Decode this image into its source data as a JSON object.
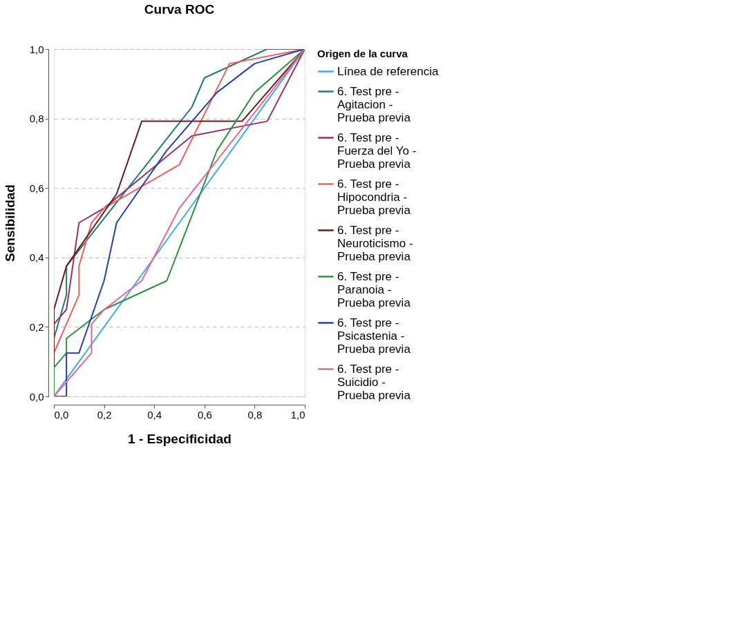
{
  "chart_data": {
    "type": "line",
    "title": "Curva ROC",
    "xlabel": "1 - Especificidad",
    "ylabel": "Sensibilidad",
    "legend_title": "Origen de la curva",
    "xlim": [
      0,
      1
    ],
    "ylim": [
      0,
      1
    ],
    "xticks": [
      {
        "value": 0,
        "label": "0,0"
      },
      {
        "value": 0.2,
        "label": "0,2"
      },
      {
        "value": 0.4,
        "label": "0,4"
      },
      {
        "value": 0.6,
        "label": "0,6"
      },
      {
        "value": 0.8,
        "label": "0,8"
      },
      {
        "value": 1,
        "label": "1,0"
      }
    ],
    "yticks": [
      {
        "value": 0,
        "label": "0,0"
      },
      {
        "value": 0.2,
        "label": "0,2"
      },
      {
        "value": 0.4,
        "label": "0,4"
      },
      {
        "value": 0.6,
        "label": "0,6"
      },
      {
        "value": 0.8,
        "label": "0,8"
      },
      {
        "value": 1,
        "label": "1,0"
      }
    ],
    "grid": "y",
    "legend": "right",
    "marker": "none",
    "line_style": "solid",
    "series": [
      {
        "name": "Línea de referencia",
        "color": "#3fa9f5",
        "x": [
          0,
          1
        ],
        "values": [
          0,
          1
        ]
      },
      {
        "name": "6. Test pre - Agitacion - Prueba previa",
        "color": "#1f7a73",
        "x": [
          0,
          0,
          0.05,
          0.05,
          0.55,
          0.6,
          0.85,
          1
        ],
        "values": [
          0,
          0.167,
          0.292,
          0.375,
          0.833,
          0.917,
          1,
          1
        ]
      },
      {
        "name": "6. Test pre - Fuerza del Yo - Prueba previa",
        "color": "#9c2e6b",
        "x": [
          0,
          0,
          0.05,
          0.1,
          0.2,
          0.55,
          0.85,
          1
        ],
        "values": [
          0,
          0.208,
          0.25,
          0.5,
          0.542,
          0.75,
          0.792,
          1
        ]
      },
      {
        "name": "6. Test pre - Hipocondria - Prueba previa",
        "color": "#ff5a5a",
        "x": [
          0,
          0,
          0.1,
          0.1,
          0.15,
          0.2,
          0.5,
          0.7,
          1
        ],
        "values": [
          0,
          0.125,
          0.292,
          0.375,
          0.5,
          0.542,
          0.667,
          0.958,
          1
        ]
      },
      {
        "name": "6. Test pre - Neuroticismo - Prueba previa",
        "color": "#6b1a1a",
        "x": [
          0,
          0,
          0.05,
          0.25,
          0.35,
          0.75,
          1
        ],
        "values": [
          0,
          0.25,
          0.375,
          0.583,
          0.792,
          0.792,
          1
        ]
      },
      {
        "name": "6. Test pre - Paranoia - Prueba previa",
        "color": "#2e9140",
        "x": [
          0,
          0,
          0.05,
          0.05,
          0.2,
          0.45,
          0.65,
          0.8,
          1
        ],
        "values": [
          0,
          0.083,
          0.125,
          0.167,
          0.25,
          0.333,
          0.708,
          0.875,
          1
        ]
      },
      {
        "name": "6. Test pre - Psicastenia - Prueba previa",
        "color": "#1f3fbf",
        "x": [
          0,
          0.05,
          0.05,
          0.1,
          0.2,
          0.25,
          0.45,
          0.65,
          0.8,
          1
        ],
        "values": [
          0,
          0,
          0.125,
          0.125,
          0.333,
          0.5,
          0.708,
          0.875,
          0.958,
          1
        ]
      },
      {
        "name": "6. Test pre - Suicidio - Prueba previa",
        "color": "#f06292",
        "x": [
          0,
          0.15,
          0.15,
          0.2,
          0.35,
          0.5,
          1
        ],
        "values": [
          0,
          0.125,
          0.208,
          0.25,
          0.333,
          0.542,
          1
        ]
      }
    ]
  }
}
